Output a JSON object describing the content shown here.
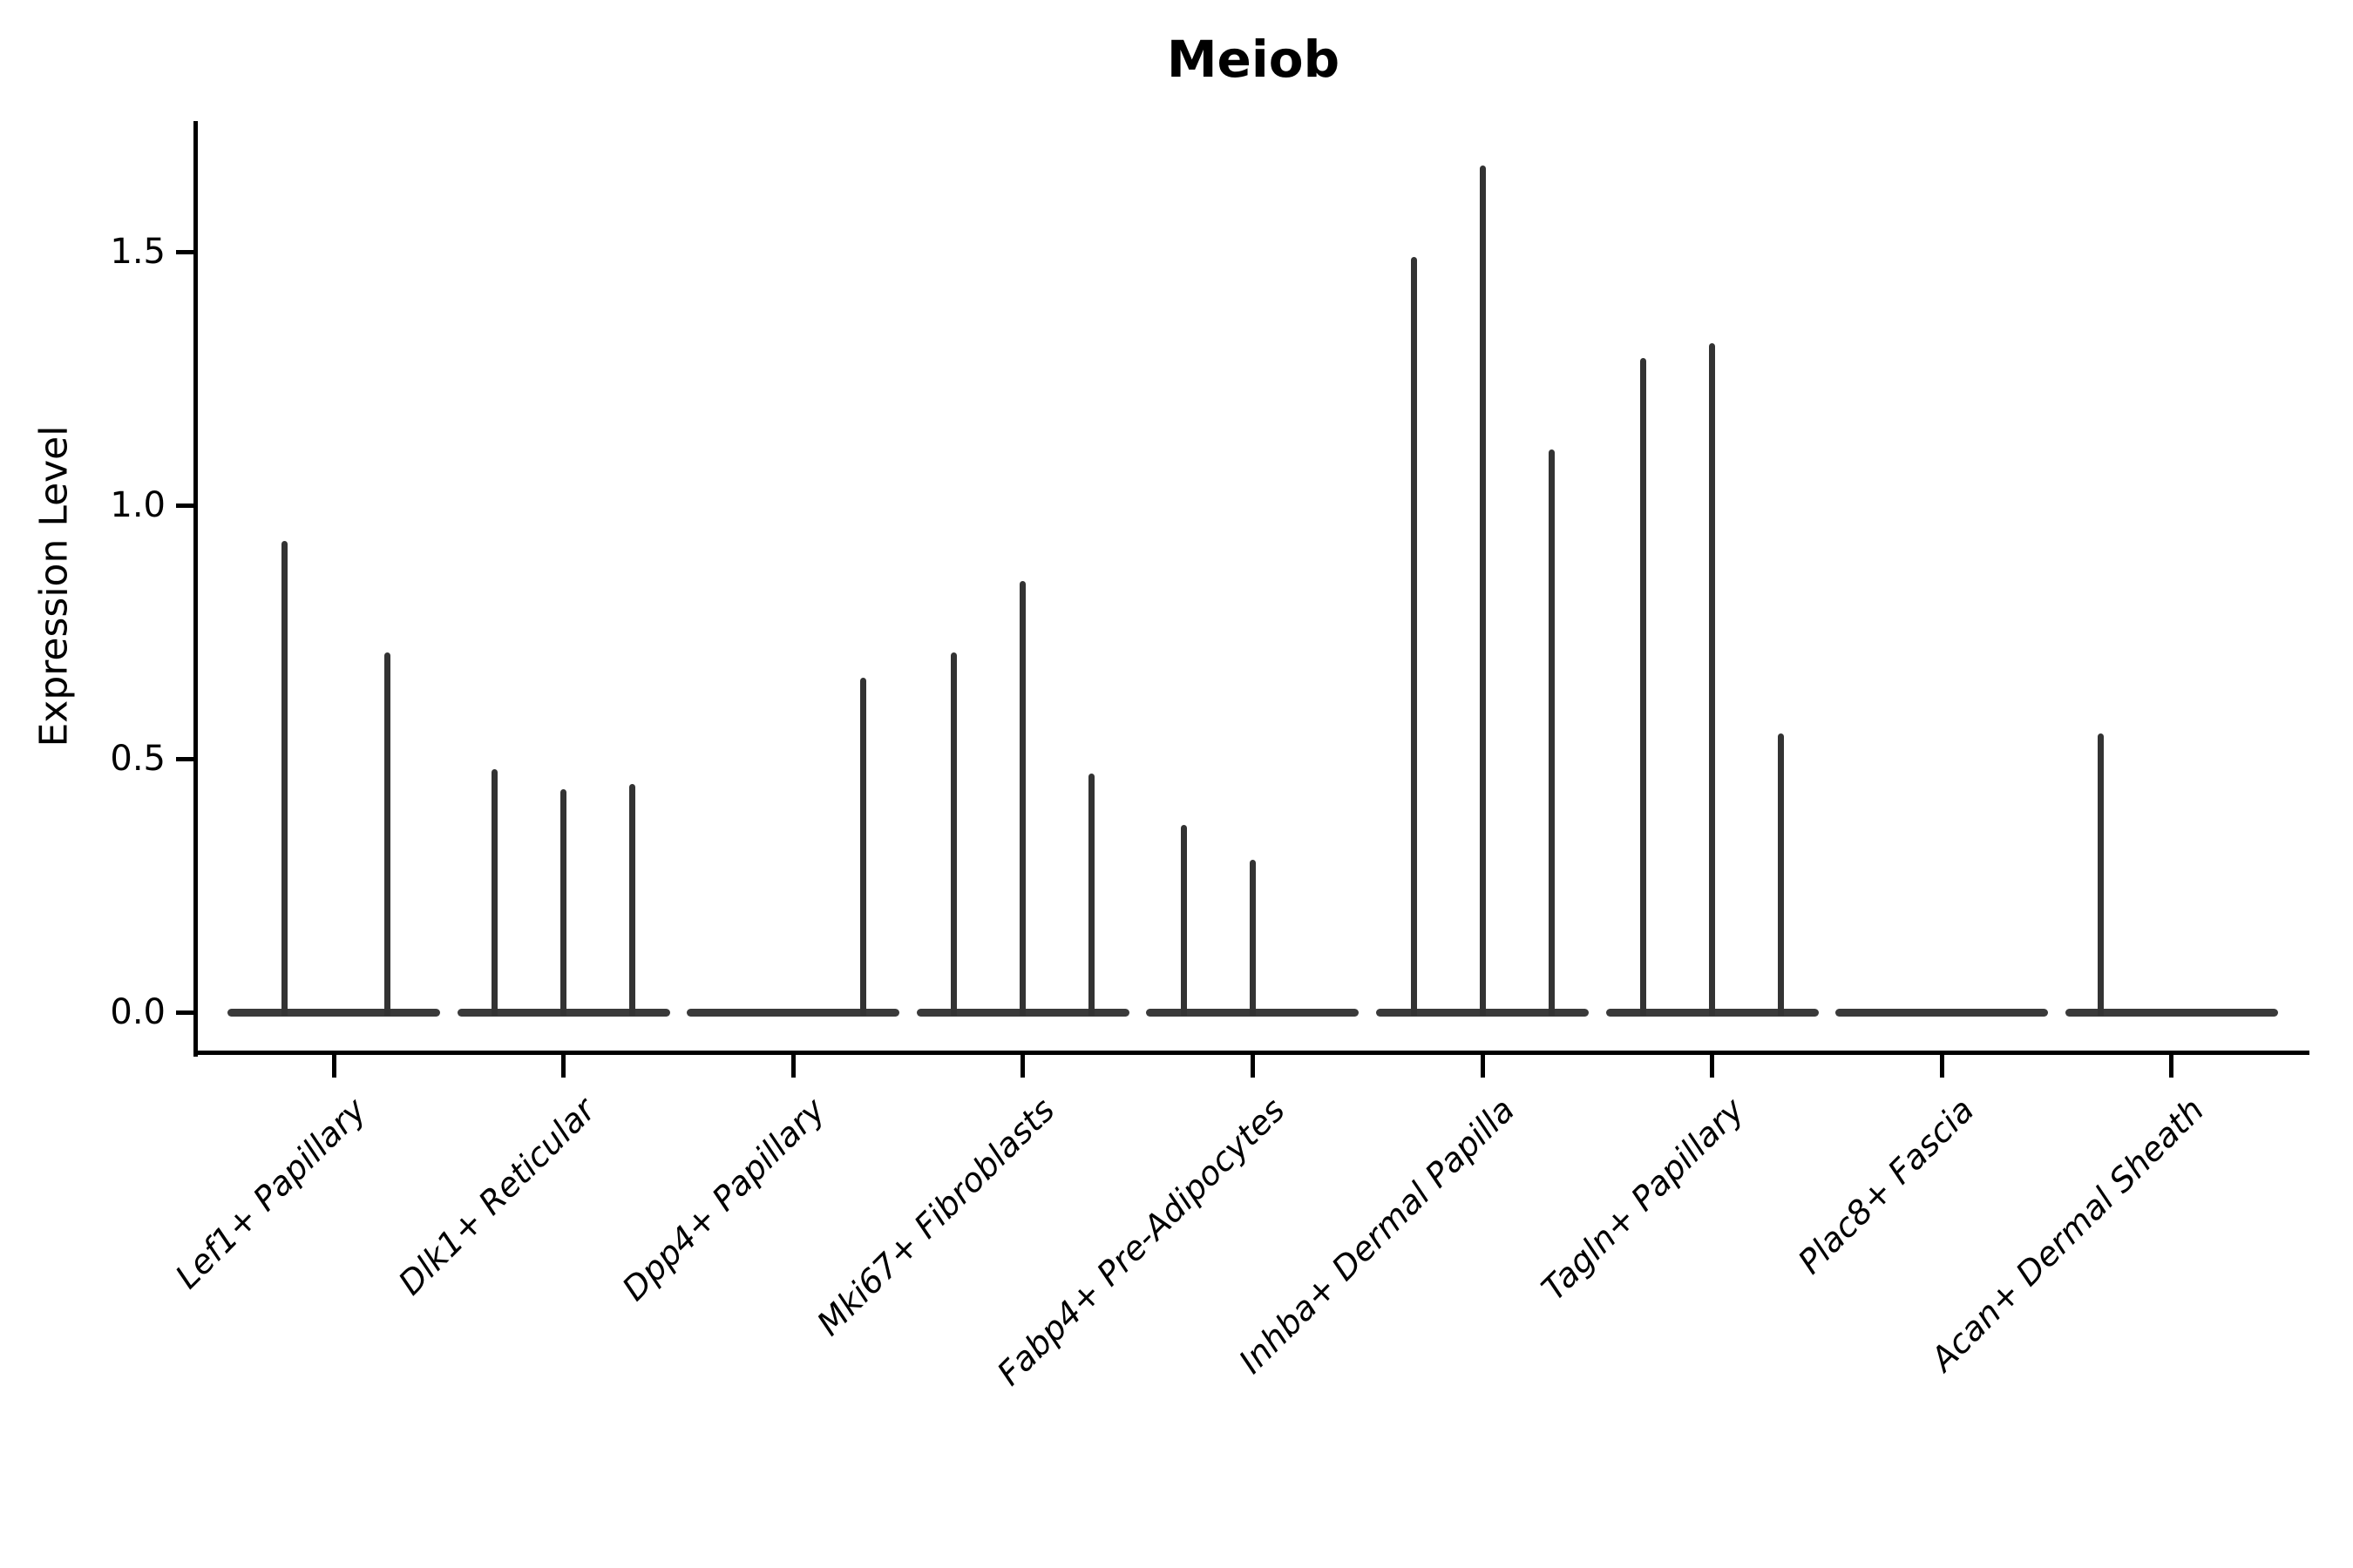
{
  "chart_data": {
    "type": "violin",
    "title": "Meiob",
    "xlabel": "",
    "ylabel": "Expression Level",
    "ytick_labels": [
      "0.0",
      "0.5",
      "1.0",
      "1.5"
    ],
    "ytick_values": [
      0.0,
      0.5,
      1.0,
      1.5
    ],
    "ylim": [
      -0.08,
      1.76
    ],
    "grid": false,
    "legend_position": "none",
    "colors": {
      "spike_line": "#333333",
      "baseline": "#3a3a3a",
      "axis": "#000000",
      "text": "#000000",
      "background": "#ffffff"
    },
    "categories": [
      {
        "label": "Lef1+ Papillary",
        "spikes": [
          {
            "offset": -57,
            "value": 0.93
          },
          {
            "offset": 61,
            "value": 0.71
          }
        ]
      },
      {
        "label": "Dlk1+ Reticular",
        "spikes": [
          {
            "offset": -79,
            "value": 0.48
          },
          {
            "offset": 0,
            "value": 0.44
          },
          {
            "offset": 79,
            "value": 0.45
          }
        ]
      },
      {
        "label": "Dpp4+ Papillary",
        "spikes": [
          {
            "offset": 80,
            "value": 0.66
          }
        ]
      },
      {
        "label": "Mki67+ Fibroblasts",
        "spikes": [
          {
            "offset": -79,
            "value": 0.71
          },
          {
            "offset": 0,
            "value": 0.85
          },
          {
            "offset": 79,
            "value": 0.47
          }
        ]
      },
      {
        "label": "Fabp4+ Pre-Adipocytes",
        "spikes": [
          {
            "offset": -79,
            "value": 0.37
          },
          {
            "offset": 0,
            "value": 0.3
          }
        ]
      },
      {
        "label": "Inhba+ Dermal Papilla",
        "spikes": [
          {
            "offset": -79,
            "value": 1.49
          },
          {
            "offset": 0,
            "value": 1.67
          },
          {
            "offset": 79,
            "value": 1.11
          }
        ]
      },
      {
        "label": "Tagln+ Papillary",
        "spikes": [
          {
            "offset": -79,
            "value": 1.29
          },
          {
            "offset": 0,
            "value": 1.32
          },
          {
            "offset": 79,
            "value": 0.55
          }
        ]
      },
      {
        "label": "Plac8+ Fascia",
        "spikes": []
      },
      {
        "label": "Acan+ Dermal Sheath",
        "spikes": [
          {
            "offset": -81,
            "value": 0.55
          }
        ]
      }
    ]
  }
}
